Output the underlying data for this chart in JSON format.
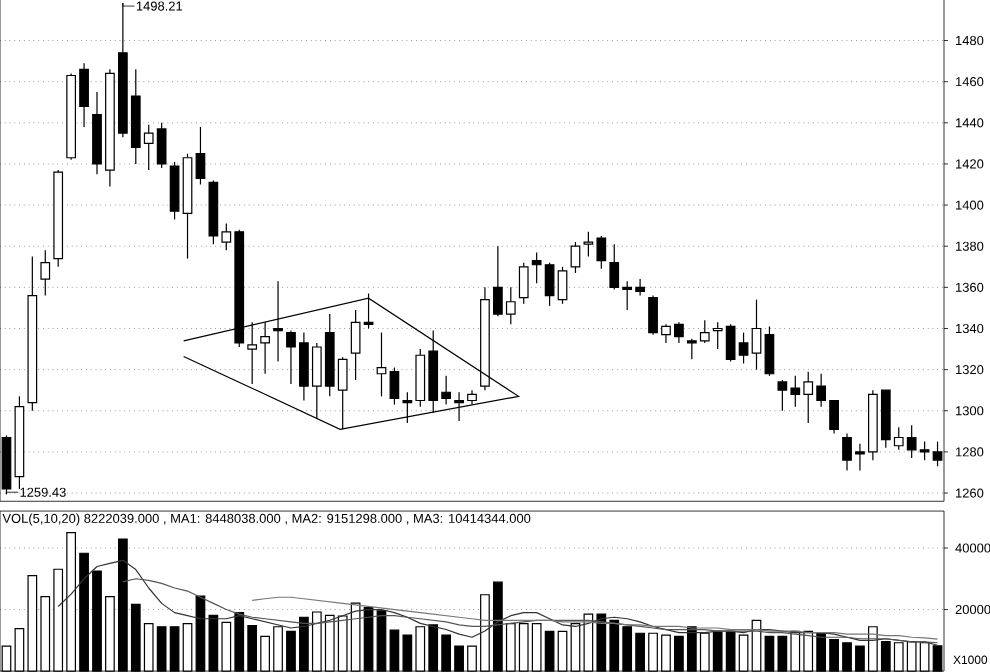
{
  "chart_data": [
    {
      "type": "candlestick",
      "categories": [
        null,
        null,
        null,
        null,
        null,
        null,
        null,
        null,
        null,
        null,
        null,
        null,
        null,
        null,
        null,
        null,
        null,
        null,
        null,
        null,
        null,
        null,
        null,
        null,
        null,
        null,
        null,
        null,
        null,
        null,
        null,
        null,
        null,
        null,
        null,
        null,
        null,
        null,
        null,
        null,
        null,
        null,
        null,
        null,
        null,
        null,
        null,
        null,
        null,
        null,
        null,
        null,
        null,
        null,
        null,
        null,
        null,
        null,
        null,
        null,
        null,
        null,
        null,
        null,
        null,
        null,
        null,
        null,
        null,
        null,
        null,
        null,
        null
      ],
      "ohlc": [
        [
          1287,
          1288,
          1259.43,
          1262
        ],
        [
          1268,
          1307,
          1262,
          1302
        ],
        [
          1304,
          1375,
          1300,
          1356
        ],
        [
          1364,
          1378,
          1356,
          1372
        ],
        [
          1374,
          1417,
          1370,
          1416
        ],
        [
          1423,
          1464,
          1422,
          1463
        ],
        [
          1466,
          1469,
          1438,
          1448
        ],
        [
          1444,
          1455,
          1415,
          1420
        ],
        [
          1417,
          1466,
          1409,
          1464
        ],
        [
          1474,
          1498.21,
          1433,
          1435
        ],
        [
          1453,
          1466,
          1420,
          1428
        ],
        [
          1430,
          1439,
          1417,
          1435
        ],
        [
          1437,
          1440,
          1418,
          1420
        ],
        [
          1419,
          1421,
          1393,
          1397
        ],
        [
          1396,
          1425,
          1374,
          1423
        ],
        [
          1425,
          1438,
          1410,
          1413
        ],
        [
          1411,
          1412,
          1381,
          1385
        ],
        [
          1382,
          1391,
          1378,
          1387
        ],
        [
          1387,
          1388,
          1331,
          1333
        ],
        [
          1330,
          1343,
          1313,
          1332
        ],
        [
          1333,
          1343,
          1318,
          1336
        ],
        [
          1340,
          1363,
          1324,
          1339
        ],
        [
          1338,
          1339,
          1313,
          1331
        ],
        [
          1333,
          1338,
          1305,
          1312
        ],
        [
          1312,
          1333,
          1296,
          1331
        ],
        [
          1338,
          1347,
          1307,
          1312
        ],
        [
          1310,
          1326,
          1291,
          1325
        ],
        [
          1328,
          1349,
          1315,
          1343
        ],
        [
          1343,
          1357,
          1340,
          1342
        ],
        [
          1318,
          1338,
          1307,
          1321
        ],
        [
          1319,
          1321,
          1303,
          1306
        ],
        [
          1305,
          1309,
          1294,
          1304
        ],
        [
          1305,
          1330,
          1302,
          1327
        ],
        [
          1329,
          1339,
          1299,
          1305
        ],
        [
          1309,
          1317,
          1303,
          1306
        ],
        [
          1305,
          1309,
          1295,
          1304
        ],
        [
          1305,
          1310,
          1303,
          1308
        ],
        [
          1312,
          1360,
          1310,
          1354
        ],
        [
          1360,
          1380,
          1346,
          1347
        ],
        [
          1347,
          1360,
          1342,
          1353
        ],
        [
          1355,
          1372,
          1352,
          1370
        ],
        [
          1373,
          1377,
          1362,
          1371
        ],
        [
          1371,
          1372,
          1351,
          1356
        ],
        [
          1354,
          1370,
          1352,
          1368
        ],
        [
          1370,
          1382,
          1367,
          1380
        ],
        [
          1381,
          1387,
          1375,
          1382
        ],
        [
          1384,
          1385,
          1369,
          1373
        ],
        [
          1372,
          1381,
          1359,
          1360
        ],
        [
          1360,
          1363,
          1349,
          1359
        ],
        [
          1360,
          1364,
          1356,
          1358
        ],
        [
          1355,
          1356,
          1337,
          1338
        ],
        [
          1337,
          1342,
          1333,
          1341
        ],
        [
          1342,
          1343,
          1333,
          1336
        ],
        [
          1334,
          1335,
          1325,
          1333
        ],
        [
          1334,
          1344,
          1333,
          1338
        ],
        [
          1339,
          1343,
          1330,
          1340
        ],
        [
          1341,
          1342,
          1324,
          1325
        ],
        [
          1333,
          1338,
          1323,
          1327
        ],
        [
          1328,
          1354,
          1320,
          1340
        ],
        [
          1337,
          1341,
          1317,
          1318
        ],
        [
          1314,
          1315,
          1300,
          1310
        ],
        [
          1311,
          1317,
          1302,
          1308
        ],
        [
          1308,
          1319,
          1294,
          1314
        ],
        [
          1312,
          1318,
          1302,
          1305
        ],
        [
          1305,
          1305,
          1289,
          1291
        ],
        [
          1287,
          1289,
          1271,
          1276
        ],
        [
          1280,
          1284,
          1271,
          1279
        ],
        [
          1280,
          1310,
          1276,
          1308
        ],
        [
          1310,
          1310,
          1282,
          1286
        ],
        [
          1283,
          1292,
          1281,
          1287
        ],
        [
          1287,
          1293,
          1277,
          1281
        ],
        [
          1281,
          1285,
          1276,
          1280
        ],
        [
          1280,
          1285,
          1273,
          1276
        ]
      ],
      "colors": [
        "#000000",
        "#ffffff",
        "#ffffff",
        "#ffffff",
        "#ffffff",
        "#ffffff",
        "#000000",
        "#000000",
        "#ffffff",
        "#000000",
        "#000000",
        "#ffffff",
        "#000000",
        "#000000",
        "#ffffff",
        "#000000",
        "#000000",
        "#ffffff",
        "#000000",
        "#ffffff",
        "#ffffff",
        "#000000",
        "#000000",
        "#000000",
        "#ffffff",
        "#000000",
        "#ffffff",
        "#ffffff",
        "#000000",
        "#ffffff",
        "#000000",
        "#000000",
        "#ffffff",
        "#000000",
        "#000000",
        "#000000",
        "#ffffff",
        "#ffffff",
        "#000000",
        "#ffffff",
        "#ffffff",
        "#000000",
        "#000000",
        "#ffffff",
        "#ffffff",
        "#ffffff",
        "#000000",
        "#000000",
        "#000000",
        "#000000",
        "#000000",
        "#ffffff",
        "#000000",
        "#000000",
        "#ffffff",
        "#ffffff",
        "#000000",
        "#000000",
        "#ffffff",
        "#000000",
        "#000000",
        "#000000",
        "#ffffff",
        "#000000",
        "#000000",
        "#000000",
        "#000000",
        "#ffffff",
        "#000000",
        "#ffffff",
        "#000000",
        "#000000",
        "#000000"
      ],
      "ylim": [
        1256,
        1502
      ],
      "yticks": [
        1260,
        1280,
        1300,
        1320,
        1340,
        1360,
        1380,
        1400,
        1420,
        1440,
        1460,
        1480
      ],
      "grid": "y",
      "tick_labels": "y",
      "annotations": [
        "1498.21",
        "1259.43"
      ]
    },
    {
      "type": "bar",
      "categories": [
        null,
        null,
        null,
        null,
        null,
        null,
        null,
        null,
        null,
        null,
        null,
        null,
        null,
        null,
        null,
        null,
        null,
        null,
        null,
        null,
        null,
        null,
        null,
        null,
        null,
        null,
        null,
        null,
        null,
        null,
        null,
        null,
        null,
        null,
        null,
        null,
        null,
        null,
        null,
        null,
        null,
        null,
        null,
        null,
        null,
        null,
        null,
        null,
        null,
        null,
        null,
        null,
        null,
        null,
        null,
        null,
        null,
        null,
        null,
        null,
        null,
        null,
        null,
        null,
        null,
        null,
        null,
        null,
        null,
        null,
        null,
        null,
        null
      ],
      "series": [
        {
          "type": "bar",
          "colors": [
            "#ffffff",
            "#ffffff",
            "#ffffff",
            "#ffffff",
            "#ffffff",
            "#ffffff",
            "#000000",
            "#000000",
            "#ffffff",
            "#000000",
            "#000000",
            "#ffffff",
            "#000000",
            "#000000",
            "#ffffff",
            "#000000",
            "#000000",
            "#ffffff",
            "#000000",
            "#000000",
            "#ffffff",
            "#ffffff",
            "#000000",
            "#000000",
            "#ffffff",
            "#ffffff",
            "#ffffff",
            "#ffffff",
            "#000000",
            "#000000",
            "#000000",
            "#000000",
            "#ffffff",
            "#000000",
            "#000000",
            "#000000",
            "#ffffff",
            "#ffffff",
            "#000000",
            "#ffffff",
            "#ffffff",
            "#ffffff",
            "#000000",
            "#ffffff",
            "#ffffff",
            "#ffffff",
            "#000000",
            "#000000",
            "#000000",
            "#000000",
            "#ffffff",
            "#ffffff",
            "#000000",
            "#000000",
            "#ffffff",
            "#000000",
            "#000000",
            "#ffffff",
            "#ffffff",
            "#000000",
            "#000000",
            "#ffffff",
            "#ffffff",
            "#000000",
            "#000000",
            "#000000",
            "#000000",
            "#ffffff",
            "#000000",
            "#ffffff",
            "#ffffff",
            "#ffffff",
            "#000000"
          ],
          "values": [
            8100,
            13800,
            31000,
            24200,
            33100,
            45000,
            38300,
            32500,
            24200,
            42900,
            21700,
            15400,
            14400,
            14400,
            15400,
            24400,
            18100,
            15800,
            19000,
            14800,
            11300,
            14400,
            12900,
            17500,
            19200,
            18100,
            17900,
            22100,
            20600,
            19600,
            13300,
            11700,
            14400,
            15000,
            11700,
            8100,
            8100,
            24800,
            28900,
            15400,
            15400,
            15400,
            12900,
            12900,
            15400,
            18500,
            18500,
            16500,
            14400,
            12300,
            12300,
            11700,
            11300,
            14400,
            12300,
            12900,
            12900,
            11700,
            16500,
            11300,
            11300,
            12900,
            12900,
            12300,
            10200,
            9200,
            8100,
            14400,
            9600,
            9200,
            9600,
            9200,
            8200
          ]
        },
        {
          "type": "line",
          "color": "#333333",
          "values": [
            null,
            null,
            null,
            null,
            21000,
            25000,
            30000,
            34000,
            35000,
            36000,
            33000,
            27000,
            22000,
            19000,
            18000,
            17000,
            17000,
            17000,
            18000,
            17000,
            16000,
            15000,
            14000,
            14500,
            15500,
            16500,
            18000,
            19500,
            20000,
            20000,
            19000,
            17500,
            15500,
            14500,
            13500,
            12000,
            11000,
            13000,
            16000,
            18000,
            19000,
            19000,
            17000,
            15000,
            14500,
            15500,
            17000,
            17500,
            17000,
            16000,
            14500,
            13500,
            12500,
            12500,
            12500,
            13000,
            13000,
            12500,
            13500,
            13500,
            13000,
            12500,
            12500,
            12500,
            12000,
            11000,
            10000,
            10000,
            10500,
            10000,
            9500,
            9500,
            8400
          ]
        },
        {
          "type": "line",
          "color": "#555555",
          "values": [
            null,
            null,
            null,
            null,
            null,
            null,
            null,
            null,
            null,
            29000,
            30000,
            29500,
            28500,
            27000,
            26000,
            24000,
            22000,
            20000,
            18500,
            17500,
            17000,
            16500,
            16000,
            15500,
            15500,
            16000,
            16500,
            17000,
            17500,
            18000,
            18000,
            17500,
            17000,
            16500,
            16000,
            15000,
            14500,
            14500,
            15000,
            15500,
            16000,
            16500,
            16500,
            16500,
            16500,
            16500,
            16000,
            15500,
            15000,
            14500,
            14000,
            13500,
            13500,
            13500,
            13500,
            13000,
            13000,
            13000,
            13000,
            12500,
            12500,
            12000,
            11500,
            11000,
            11000,
            11000,
            10500,
            10500,
            10500,
            10000,
            9500,
            9500,
            9200
          ]
        },
        {
          "type": "line",
          "color": "#777777",
          "values": [
            null,
            null,
            null,
            null,
            null,
            null,
            null,
            null,
            null,
            null,
            null,
            null,
            null,
            null,
            null,
            null,
            null,
            null,
            null,
            23000,
            23500,
            24000,
            24000,
            23500,
            23000,
            22500,
            22000,
            21500,
            21000,
            20500,
            20000,
            19500,
            19000,
            18500,
            18000,
            17500,
            17000,
            16500,
            16500,
            16500,
            16500,
            16500,
            16500,
            16000,
            16000,
            16000,
            15500,
            15500,
            15000,
            15000,
            14500,
            14500,
            14500,
            14000,
            14000,
            14000,
            13500,
            13500,
            13500,
            13000,
            13000,
            13000,
            12500,
            12500,
            12500,
            12000,
            12000,
            12000,
            11500,
            11500,
            11000,
            10800,
            10400
          ]
        }
      ],
      "ylim": [
        0,
        52000
      ],
      "yticks": [
        20000,
        40000
      ],
      "grid": "y",
      "tick_labels": "y",
      "ylabel": "X1000",
      "annotations": [
        "VOL(5,10,20)  8222039.000 , MA1: 8448038.000 , MA2: 9151298.000 , MA3: 10414344.000"
      ]
    }
  ]
}
